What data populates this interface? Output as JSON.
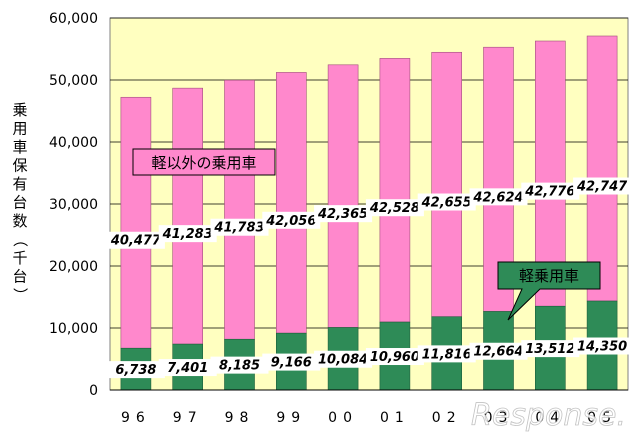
{
  "chart_data": {
    "type": "bar",
    "stacked": true,
    "title": "",
    "xlabel": "",
    "ylabel": "乗用車保有台数（千台）",
    "ylim": [
      0,
      60000
    ],
    "yticks": [
      0,
      10000,
      20000,
      30000,
      40000,
      50000,
      60000
    ],
    "ytick_labels": [
      "0",
      "10,000",
      "20,000",
      "30,000",
      "40,000",
      "50,000",
      "60,000"
    ],
    "grid": true,
    "categories": [
      "96",
      "97",
      "98",
      "99",
      "00",
      "01",
      "02",
      "03",
      "04",
      "05"
    ],
    "series": [
      {
        "name": "軽乗用車",
        "color": "#2e8b57",
        "values": [
          6738,
          7401,
          8185,
          9166,
          10084,
          10960,
          11816,
          12664,
          13512,
          14350
        ],
        "labels": [
          "6,738",
          "7,401",
          "8,185",
          "9,166",
          "10,084",
          "10,960",
          "11,816",
          "12,664",
          "13,512",
          "14,350"
        ]
      },
      {
        "name": "軽以外の乗用車",
        "color": "#ff88cc",
        "values": [
          40477,
          41283,
          41783,
          42056,
          42365,
          42528,
          42655,
          42624,
          42776,
          42747
        ],
        "labels": [
          "40,477",
          "41,283",
          "41,783",
          "42,056",
          "42,365",
          "42,528",
          "42,655",
          "42,624",
          "42,776",
          "42,747"
        ]
      }
    ],
    "plot_background": "#ffffc0",
    "watermark": "Response."
  }
}
